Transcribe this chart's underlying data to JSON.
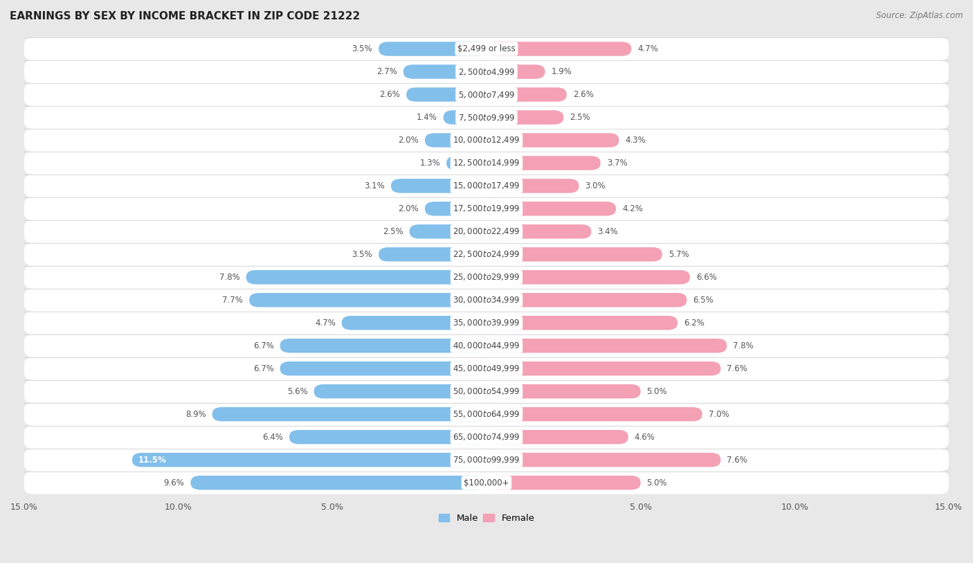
{
  "title": "EARNINGS BY SEX BY INCOME BRACKET IN ZIP CODE 21222",
  "source": "Source: ZipAtlas.com",
  "categories": [
    "$2,499 or less",
    "$2,500 to $4,999",
    "$5,000 to $7,499",
    "$7,500 to $9,999",
    "$10,000 to $12,499",
    "$12,500 to $14,999",
    "$15,000 to $17,499",
    "$17,500 to $19,999",
    "$20,000 to $22,499",
    "$22,500 to $24,999",
    "$25,000 to $29,999",
    "$30,000 to $34,999",
    "$35,000 to $39,999",
    "$40,000 to $44,999",
    "$45,000 to $49,999",
    "$50,000 to $54,999",
    "$55,000 to $64,999",
    "$65,000 to $74,999",
    "$75,000 to $99,999",
    "$100,000+"
  ],
  "male": [
    3.5,
    2.7,
    2.6,
    1.4,
    2.0,
    1.3,
    3.1,
    2.0,
    2.5,
    3.5,
    7.8,
    7.7,
    4.7,
    6.7,
    6.7,
    5.6,
    8.9,
    6.4,
    11.5,
    9.6
  ],
  "female": [
    4.7,
    1.9,
    2.6,
    2.5,
    4.3,
    3.7,
    3.0,
    4.2,
    3.4,
    5.7,
    6.6,
    6.5,
    6.2,
    7.8,
    7.6,
    5.0,
    7.0,
    4.6,
    7.6,
    5.0
  ],
  "male_color": "#82BFEB",
  "female_color": "#F4A0B5",
  "male_label": "Male",
  "female_label": "Female",
  "xlim": 15.0,
  "row_color_odd": "#e8e8e8",
  "row_color_even": "#f5f5f5",
  "background_color": "#e8e8e8",
  "title_fontsize": 11,
  "label_fontsize": 8.5,
  "source_fontsize": 8.5,
  "value_inside_threshold": 10.0
}
